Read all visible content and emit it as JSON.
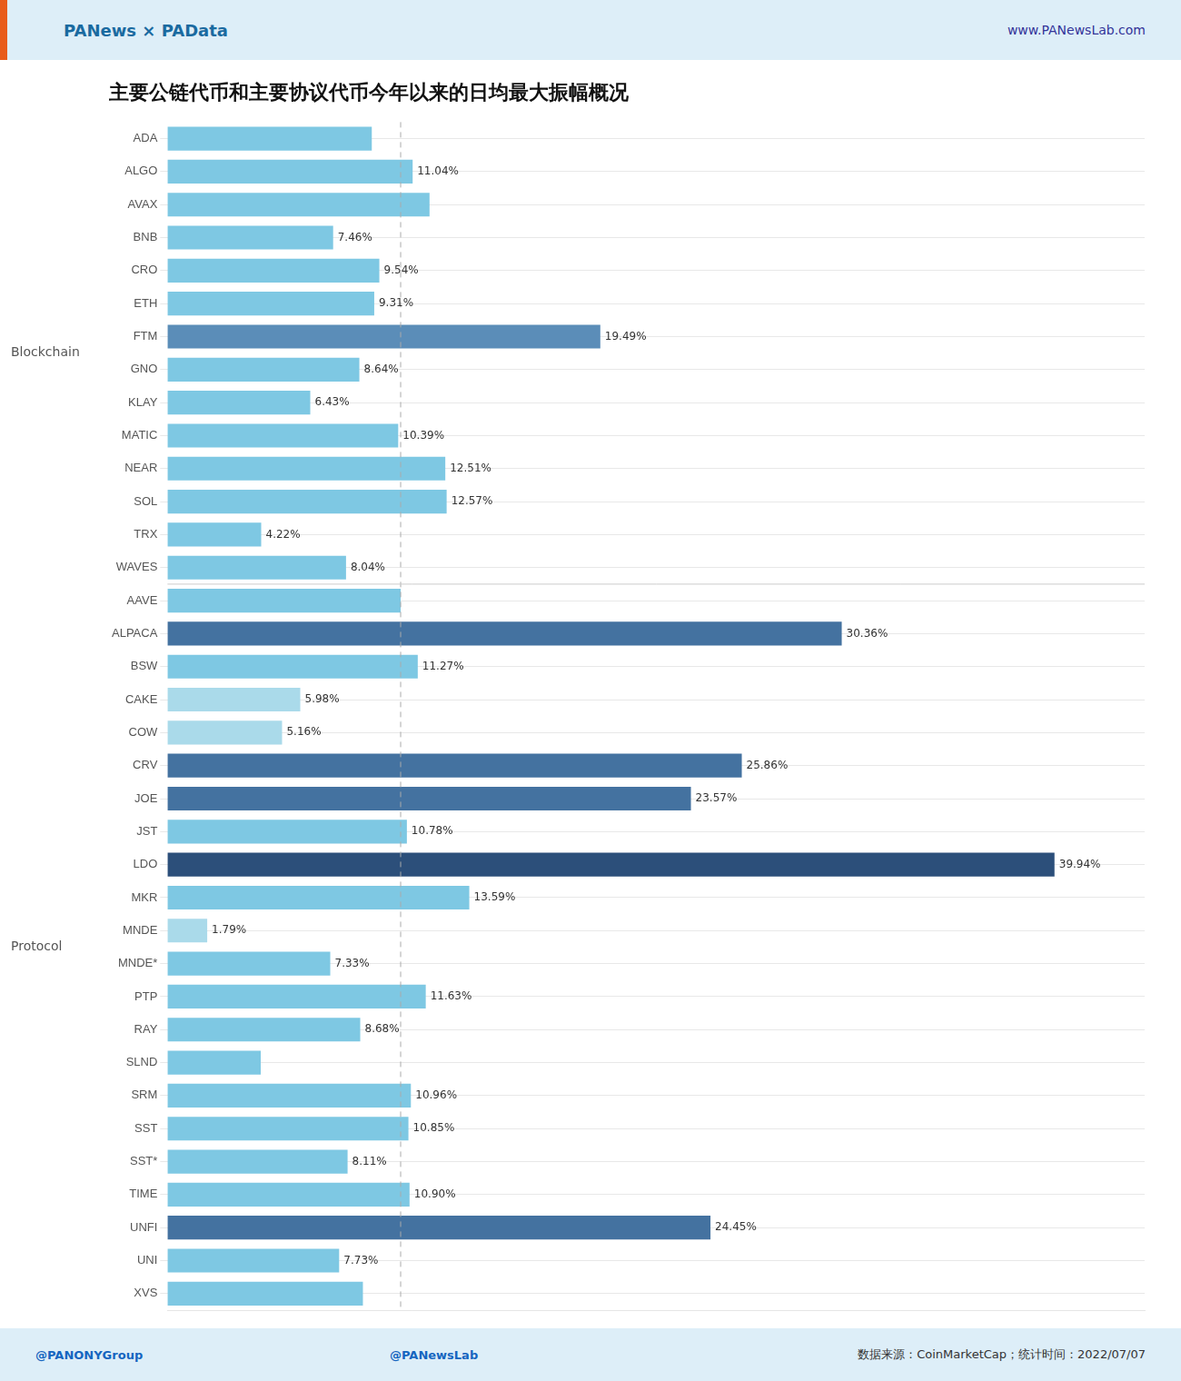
{
  "chart_data": {
    "type": "bar",
    "orientation": "horizontal",
    "title": "主要公链代币和主要协议代币今年以来的日均最大振幅概况",
    "header_text": "PANews × PAData",
    "website": "www.PANewsLab.com",
    "source_text": "数据来源：CoinMarketCap；统计时间：2022/07/07",
    "footer_left1": "@PANONYGroup",
    "footer_left2": "@PANewsLab",
    "categories": [
      "ADA",
      "ALGO",
      "AVAX",
      "BNB",
      "CRO",
      "ETH",
      "FTM",
      "GNO",
      "KLAY",
      "MATIC",
      "NEAR",
      "SOL",
      "TRX",
      "WAVES",
      "AAVE",
      "ALPACA",
      "BSW",
      "CAKE",
      "COW",
      "CRV",
      "JOE",
      "JST",
      "LDO",
      "MKR",
      "MNDE",
      "MNDE*",
      "PTP",
      "RAY",
      "SLND",
      "SRM",
      "SST",
      "SST*",
      "TIME",
      "UNFI",
      "UNI",
      "XVS"
    ],
    "values": [
      9.2,
      11.04,
      11.8,
      7.46,
      9.54,
      9.31,
      19.49,
      8.64,
      6.43,
      10.39,
      12.51,
      12.57,
      4.22,
      8.04,
      10.5,
      30.36,
      11.27,
      5.98,
      5.16,
      25.86,
      23.57,
      10.78,
      39.94,
      13.59,
      1.79,
      7.33,
      11.63,
      8.68,
      4.2,
      10.96,
      10.85,
      8.11,
      10.9,
      24.45,
      7.73,
      8.8
    ],
    "value_labels": [
      null,
      "11.04%",
      null,
      "7.46%",
      "9.54%",
      "9.31%",
      "19.49%",
      "8.64%",
      "6.43%",
      "10.39%",
      "12.51%",
      "12.57%",
      "4.22%",
      "8.04%",
      null,
      "30.36%",
      "11.27%",
      "5.98%",
      "5.16%",
      "25.86%",
      "23.57%",
      "10.78%",
      "39.94%",
      "13.59%",
      "1.79%",
      "7.33%",
      "11.63%",
      "8.68%",
      null,
      "10.96%",
      "10.85%",
      "8.11%",
      "10.90%",
      "24.45%",
      "7.73%",
      null
    ],
    "colors": [
      "#7EC8E3",
      "#7EC8E3",
      "#7EC8E3",
      "#7EC8E3",
      "#7EC8E3",
      "#7EC8E3",
      "#5B8DB8",
      "#7EC8E3",
      "#7EC8E3",
      "#7EC8E3",
      "#7EC8E3",
      "#7EC8E3",
      "#7EC8E3",
      "#7EC8E3",
      "#7EC8E3",
      "#4472A0",
      "#7EC8E3",
      "#AADAEA",
      "#AADAEA",
      "#4472A0",
      "#4472A0",
      "#7EC8E3",
      "#2C4F7A",
      "#7EC8E3",
      "#AADAEA",
      "#7EC8E3",
      "#7EC8E3",
      "#7EC8E3",
      "#7EC8E3",
      "#7EC8E3",
      "#7EC8E3",
      "#7EC8E3",
      "#7EC8E3",
      "#4472A0",
      "#7EC8E3",
      "#7EC8E3"
    ],
    "groups": [
      {
        "name": "Blockchain",
        "first": "ADA",
        "last": "WAVES"
      },
      {
        "name": "Protocol",
        "first": "AAVE",
        "last": "XVS"
      }
    ],
    "reference_line": {
      "x": 10.5,
      "line_style": "dashed"
    },
    "xlim": [
      0,
      44
    ],
    "grid": true,
    "tick_labels": "y"
  }
}
